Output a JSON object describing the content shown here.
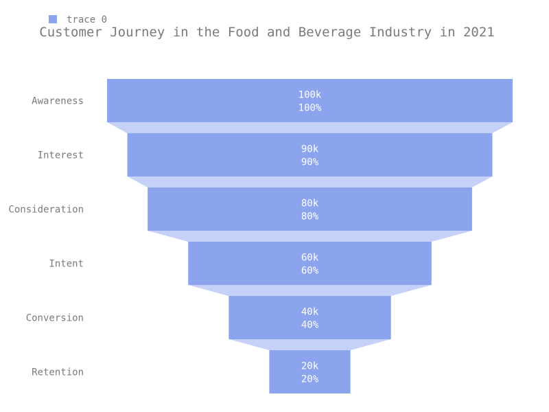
{
  "chart_data": {
    "type": "funnel",
    "title": "Customer Journey in the Food and Beverage Industry in 2021",
    "legend": {
      "position": "top-left",
      "entries": [
        "trace 0"
      ]
    },
    "categories": [
      "Awareness",
      "Interest",
      "Consideration",
      "Intent",
      "Conversion",
      "Retention"
    ],
    "series": [
      {
        "name": "trace 0",
        "values": [
          100000,
          90000,
          80000,
          60000,
          40000,
          20000
        ],
        "value_labels": [
          "100k",
          "90k",
          "80k",
          "60k",
          "40k",
          "20k"
        ],
        "percent_labels": [
          "100%",
          "90%",
          "80%",
          "60%",
          "40%",
          "20%"
        ]
      }
    ],
    "colors": {
      "bar": "#8ca4ee",
      "connector": "#c5d1f7"
    }
  }
}
